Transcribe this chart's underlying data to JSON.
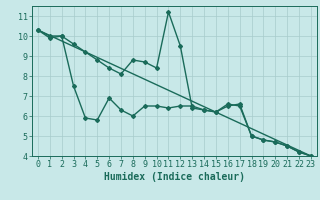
{
  "title": "",
  "xlabel": "Humidex (Indice chaleur)",
  "ylabel": "",
  "xlim": [
    -0.5,
    23.5
  ],
  "ylim": [
    4,
    11.5
  ],
  "yticks": [
    4,
    5,
    6,
    7,
    8,
    9,
    10,
    11
  ],
  "xticks": [
    0,
    1,
    2,
    3,
    4,
    5,
    6,
    7,
    8,
    9,
    10,
    11,
    12,
    13,
    14,
    15,
    16,
    17,
    18,
    19,
    20,
    21,
    22,
    23
  ],
  "bg_color": "#c8e8e8",
  "line_color": "#1a6b5a",
  "grid_color": "#a8cccc",
  "series1_x": [
    0,
    1,
    2,
    3,
    4,
    5,
    6,
    7,
    8,
    9,
    10,
    11,
    12,
    13,
    14,
    15,
    16,
    17,
    18,
    19,
    20,
    21,
    22,
    23
  ],
  "series1_y": [
    10.3,
    10.0,
    10.0,
    9.6,
    9.2,
    8.8,
    8.4,
    8.1,
    8.8,
    8.7,
    8.4,
    11.2,
    9.5,
    6.4,
    6.3,
    6.2,
    6.5,
    6.6,
    5.0,
    4.8,
    4.7,
    4.5,
    4.2,
    4.0
  ],
  "series2_x": [
    0,
    1,
    2,
    3,
    4,
    5,
    6,
    7,
    8,
    9,
    10,
    11,
    12,
    13,
    14,
    15,
    16,
    17,
    18,
    19,
    20,
    21,
    22,
    23
  ],
  "series2_y": [
    10.3,
    9.9,
    10.0,
    7.5,
    5.9,
    5.8,
    6.9,
    6.3,
    6.0,
    6.5,
    6.5,
    6.4,
    6.5,
    6.5,
    6.3,
    6.2,
    6.6,
    6.5,
    5.0,
    4.8,
    4.7,
    4.5,
    4.2,
    4.0
  ],
  "series3_x": [
    0,
    23
  ],
  "series3_y": [
    10.3,
    4.0
  ],
  "font_size": 7,
  "marker": "D",
  "marker_size": 2.0
}
